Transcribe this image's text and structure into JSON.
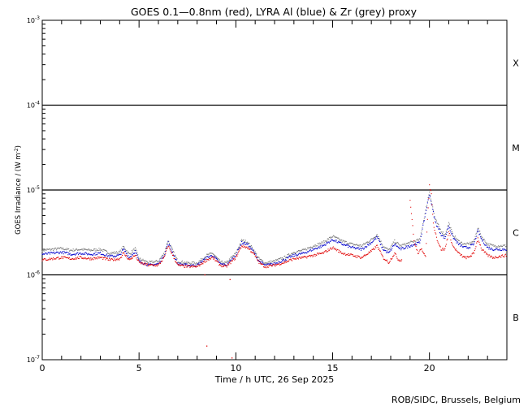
{
  "chart_data": {
    "type": "line",
    "title": "GOES 0.1—0.8nm (red), LYRA Al (blue) & Zr (grey) proxy",
    "xlabel": "Time / h UTC, 26 Sep 2025",
    "ylabel": "GOES Irradiance / (W m",
    "ylabel_sup": "-2",
    "ylabel_end": ")",
    "credit": "ROB/SIDC, Brussels, Belgium",
    "xlim": [
      0,
      24
    ],
    "ylim_log10": [
      -7,
      -3
    ],
    "y_scale": "log",
    "x_ticks": [
      "0",
      "5",
      "10",
      "15",
      "20"
    ],
    "x_tick_values": [
      0,
      5,
      10,
      15,
      20
    ],
    "y_tick_labels": [
      {
        "base": "10",
        "exp": "-7",
        "value": -7
      },
      {
        "base": "10",
        "exp": "-6",
        "value": -6
      },
      {
        "base": "10",
        "exp": "-5",
        "value": -5
      },
      {
        "base": "10",
        "exp": "-4",
        "value": -4
      },
      {
        "base": "10",
        "exp": "-3",
        "value": -3
      }
    ],
    "flare_classes": [
      {
        "label": "B",
        "log10_center": -6.5
      },
      {
        "label": "C",
        "log10_center": -5.5
      },
      {
        "label": "M",
        "log10_center": -4.5
      },
      {
        "label": "X",
        "log10_center": -3.5
      }
    ],
    "threshold_lines_log10": [
      -6,
      -5,
      -4
    ],
    "series": [
      {
        "name": "GOES 0.1—0.8nm",
        "color": "#e00000",
        "x": [
          0.0,
          0.5,
          1.0,
          1.5,
          2.0,
          2.5,
          3.0,
          3.5,
          4.0,
          4.2,
          4.5,
          4.8,
          5.0,
          5.5,
          6.0,
          6.3,
          6.5,
          6.8,
          7.0,
          7.5,
          8.0,
          8.5,
          8.8,
          9.2,
          9.5,
          10.0,
          10.3,
          10.6,
          10.9,
          11.2,
          11.5,
          12.0,
          12.5,
          13.0,
          13.5,
          14.0,
          14.5,
          15.0,
          15.5,
          16.0,
          16.5,
          17.0,
          17.3,
          17.6,
          17.9,
          18.2,
          18.4,
          18.6
        ],
        "values": [
          1.5e-06,
          1.55e-06,
          1.6e-06,
          1.55e-06,
          1.6e-06,
          1.55e-06,
          1.6e-06,
          1.5e-06,
          1.55e-06,
          1.8e-06,
          1.5e-06,
          1.7e-06,
          1.4e-06,
          1.3e-06,
          1.3e-06,
          1.6e-06,
          2.2e-06,
          1.6e-06,
          1.3e-06,
          1.25e-06,
          1.25e-06,
          1.5e-06,
          1.6e-06,
          1.3e-06,
          1.25e-06,
          1.6e-06,
          2.2e-06,
          2.1e-06,
          1.8e-06,
          1.4e-06,
          1.25e-06,
          1.3e-06,
          1.4e-06,
          1.55e-06,
          1.6e-06,
          1.7e-06,
          1.8e-06,
          2.1e-06,
          1.8e-06,
          1.7e-06,
          1.6e-06,
          1.9e-06,
          2.2e-06,
          1.6e-06,
          1.4e-06,
          1.8e-06,
          1.5e-06,
          1.5e-06
        ]
      },
      {
        "name": "GOES 0.1—0.8nm (after gap)",
        "color": "#e00000",
        "x": [
          19.0,
          19.1,
          19.2,
          19.4,
          19.6,
          19.8,
          20.0,
          20.1,
          20.2,
          20.4,
          20.6,
          20.8,
          21.0,
          21.2,
          21.5,
          21.8,
          22.0,
          22.3,
          22.5,
          22.7,
          23.0,
          23.3,
          23.6,
          24.0
        ],
        "values": [
          7.6e-06,
          4.5e-06,
          2.5e-06,
          1.8e-06,
          2e-06,
          1.7e-06,
          1.12e-05,
          9e-06,
          4e-06,
          2.6e-06,
          2e-06,
          2e-06,
          3.2e-06,
          2.2e-06,
          1.8e-06,
          1.6e-06,
          1.6e-06,
          1.8e-06,
          2.7e-06,
          2e-06,
          1.7e-06,
          1.6e-06,
          1.65e-06,
          1.7e-06
        ]
      },
      {
        "name": "LYRA Al proxy",
        "color": "#0000cc",
        "x": [
          0.0,
          0.5,
          1.0,
          1.5,
          2.0,
          2.5,
          3.0,
          3.5,
          4.0,
          4.2,
          4.5,
          4.8,
          5.0,
          5.5,
          6.0,
          6.3,
          6.5,
          6.8,
          7.0,
          7.5,
          8.0,
          8.5,
          8.8,
          9.2,
          9.5,
          10.0,
          10.3,
          10.6,
          10.9,
          11.2,
          11.5,
          12.0,
          12.5,
          13.0,
          13.5,
          14.0,
          14.5,
          15.0,
          15.5,
          16.0,
          16.5,
          17.0,
          17.3,
          17.6,
          17.9,
          18.2,
          18.5,
          19.0,
          19.5,
          20.0,
          20.1,
          20.3,
          20.6,
          20.8,
          21.0,
          21.2,
          21.5,
          21.8,
          22.0,
          22.3,
          22.5,
          22.7,
          23.0,
          23.3,
          23.6,
          24.0
        ],
        "values": [
          1.75e-06,
          1.8e-06,
          1.85e-06,
          1.75e-06,
          1.8e-06,
          1.75e-06,
          1.8e-06,
          1.65e-06,
          1.7e-06,
          2e-06,
          1.6e-06,
          1.9e-06,
          1.45e-06,
          1.3e-06,
          1.35e-06,
          1.7e-06,
          2.4e-06,
          1.7e-06,
          1.35e-06,
          1.3e-06,
          1.3e-06,
          1.6e-06,
          1.7e-06,
          1.35e-06,
          1.3e-06,
          1.7e-06,
          2.4e-06,
          2.3e-06,
          1.9e-06,
          1.45e-06,
          1.3e-06,
          1.35e-06,
          1.5e-06,
          1.7e-06,
          1.8e-06,
          2e-06,
          2.2e-06,
          2.6e-06,
          2.3e-06,
          2.1e-06,
          2e-06,
          2.4e-06,
          2.8e-06,
          2e-06,
          1.8e-06,
          2.3e-06,
          2e-06,
          2.2e-06,
          2.4e-06,
          9e-06,
          7e-06,
          4.2e-06,
          3e-06,
          2.7e-06,
          3.8e-06,
          2.8e-06,
          2.3e-06,
          2.1e-06,
          2.1e-06,
          2.3e-06,
          3.3e-06,
          2.6e-06,
          2.1e-06,
          2e-06,
          2e-06,
          2e-06
        ]
      },
      {
        "name": "LYRA Zr proxy",
        "color": "#7a7a7a",
        "x": [
          0.0,
          0.5,
          1.0,
          1.5,
          2.0,
          2.5,
          3.0,
          3.5,
          4.0,
          4.2,
          4.5,
          4.8,
          5.0,
          5.5,
          6.0,
          6.3,
          6.5,
          6.8,
          7.0,
          7.5,
          8.0,
          8.5,
          8.8,
          9.2,
          9.5,
          10.0,
          10.3,
          10.6,
          10.9,
          11.2,
          11.5,
          12.0,
          12.5,
          13.0,
          13.5,
          14.0,
          14.5,
          15.0,
          15.5,
          16.0,
          16.5,
          17.0,
          17.3,
          17.6,
          17.9,
          18.2,
          18.5,
          19.0,
          19.5,
          20.0,
          20.1,
          20.3,
          20.6,
          20.8,
          21.0,
          21.2,
          21.5,
          21.8,
          22.0,
          22.3,
          22.5,
          22.7,
          23.0,
          23.3,
          23.6,
          24.0
        ],
        "values": [
          1.95e-06,
          2e-06,
          2.05e-06,
          1.95e-06,
          2e-06,
          1.95e-06,
          2e-06,
          1.8e-06,
          1.85e-06,
          2.15e-06,
          1.75e-06,
          2.05e-06,
          1.55e-06,
          1.4e-06,
          1.45e-06,
          1.8e-06,
          2.55e-06,
          1.8e-06,
          1.45e-06,
          1.38e-06,
          1.38e-06,
          1.7e-06,
          1.8e-06,
          1.42e-06,
          1.38e-06,
          1.8e-06,
          2.55e-06,
          2.45e-06,
          2e-06,
          1.55e-06,
          1.38e-06,
          1.45e-06,
          1.6e-06,
          1.85e-06,
          1.95e-06,
          2.2e-06,
          2.4e-06,
          2.85e-06,
          2.5e-06,
          2.3e-06,
          2.2e-06,
          2.6e-06,
          3e-06,
          2.2e-06,
          1.95e-06,
          2.5e-06,
          2.2e-06,
          2.4e-06,
          2.6e-06,
          9.6e-06,
          7.4e-06,
          4.5e-06,
          3.3e-06,
          2.95e-06,
          4.1e-06,
          3e-06,
          2.5e-06,
          2.3e-06,
          2.3e-06,
          2.5e-06,
          3.6e-06,
          2.8e-06,
          2.3e-06,
          2.2e-06,
          2.2e-06,
          2.2e-06
        ]
      }
    ],
    "outliers": {
      "color": "#e00000",
      "points": [
        {
          "x": 8.5,
          "value": 1.45e-07
        },
        {
          "x": 9.8,
          "value": 1.05e-07
        },
        {
          "x": 8.4,
          "value": 1e-06
        },
        {
          "x": 9.7,
          "value": 8.8e-07
        }
      ]
    }
  }
}
